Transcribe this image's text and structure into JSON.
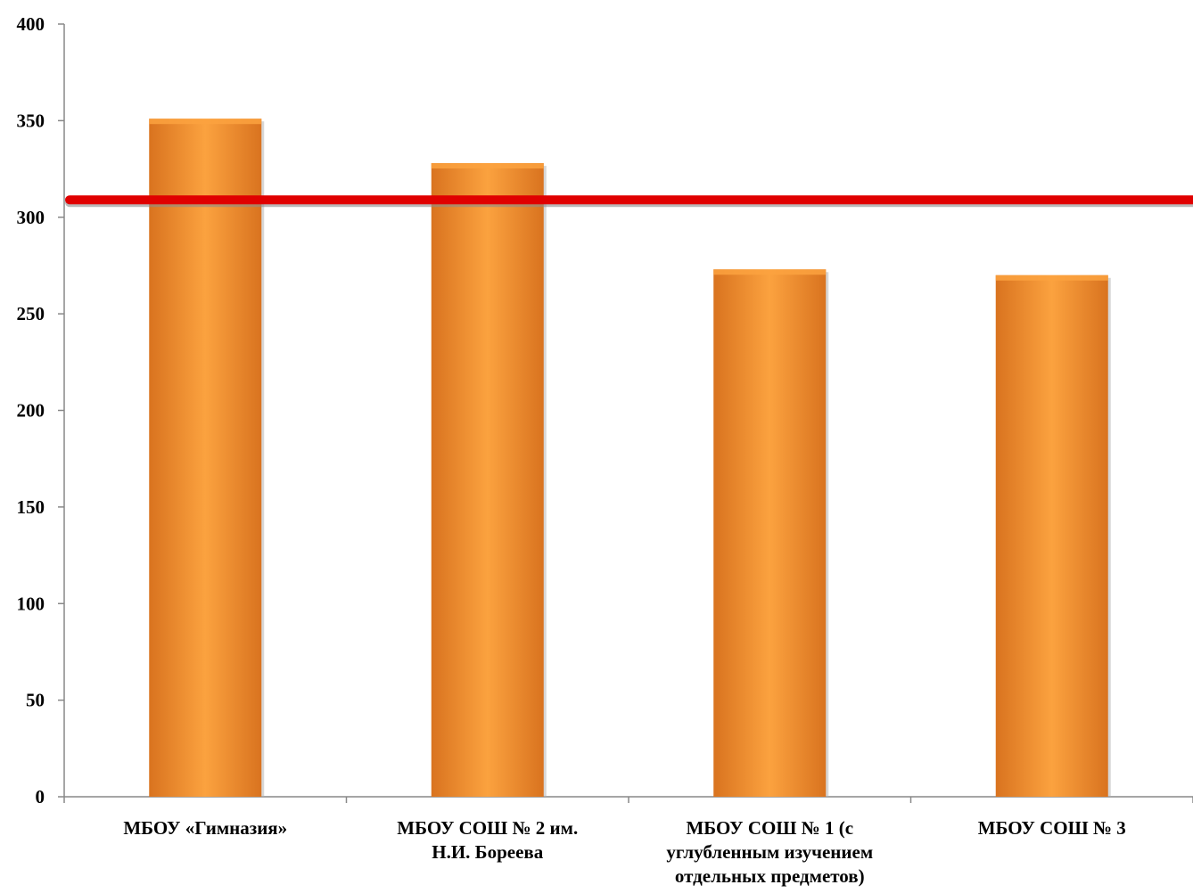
{
  "chart_data": {
    "type": "bar",
    "categories": [
      "МБОУ «Гимназия»",
      "МБОУ СОШ № 2 им.\nН.И. Бореева",
      "МБОУ СОШ № 1 (с\nуглубленным изучением\nотдельных предметов)",
      "МБОУ СОШ № 3"
    ],
    "values": [
      351,
      328,
      273,
      270
    ],
    "ylim": [
      0,
      400
    ],
    "yticks": [
      0,
      50,
      100,
      150,
      200,
      250,
      300,
      350,
      400
    ],
    "reference_line": 309,
    "grid": false,
    "legend": "none",
    "colors": {
      "bar": "#f0922e",
      "bar_light": "#fba23f",
      "bar_dark": "#d9731f",
      "reference_line": "#e00000",
      "axis": "#888888"
    }
  }
}
